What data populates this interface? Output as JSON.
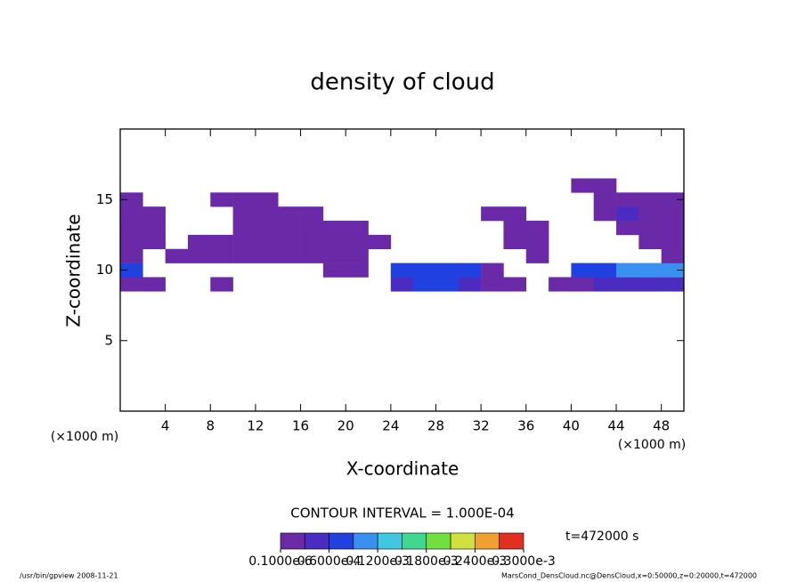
{
  "chart_data": {
    "type": "heatmap",
    "title": "density of cloud",
    "xlabel": "X-coordinate",
    "ylabel": "Z-coordinate",
    "x_unit": "(×1000 m)",
    "xlim": [
      0,
      50
    ],
    "ylim": [
      0,
      20
    ],
    "xticks": [
      4,
      8,
      12,
      16,
      20,
      24,
      28,
      32,
      36,
      40,
      44,
      48
    ],
    "yticks": [
      5,
      10,
      15
    ],
    "x": [
      1,
      3,
      5,
      7,
      9,
      11,
      13,
      15,
      17,
      19,
      21,
      23,
      25,
      27,
      29,
      31,
      33,
      35,
      37,
      39,
      41,
      43,
      45,
      47,
      49
    ],
    "z": [
      9,
      10,
      11,
      12,
      13,
      14,
      15,
      16
    ],
    "values": [
      [
        2e-05,
        2e-05,
        null,
        null,
        2e-05,
        null,
        null,
        null,
        null,
        null,
        null,
        null,
        4e-05,
        6e-05,
        6e-05,
        4e-05,
        2e-05,
        2e-05,
        null,
        2e-05,
        2e-05,
        4e-05,
        4e-05,
        4e-05,
        4e-05
      ],
      [
        6e-05,
        null,
        null,
        null,
        null,
        null,
        null,
        null,
        null,
        2e-05,
        2e-05,
        null,
        6e-05,
        6e-05,
        6e-05,
        6e-05,
        2e-05,
        null,
        null,
        null,
        6e-05,
        6e-05,
        0.0001,
        0.0001,
        0.0001
      ],
      [
        2e-05,
        null,
        2e-05,
        2e-05,
        2e-05,
        2e-05,
        2e-05,
        2e-05,
        2e-05,
        2e-05,
        2e-05,
        null,
        null,
        null,
        null,
        null,
        null,
        null,
        2e-05,
        null,
        null,
        null,
        null,
        null,
        2e-05
      ],
      [
        2e-05,
        2e-05,
        null,
        2e-05,
        2e-05,
        2e-05,
        2e-05,
        2e-05,
        2e-05,
        2e-05,
        2e-05,
        2e-05,
        null,
        null,
        null,
        null,
        null,
        2e-05,
        2e-05,
        null,
        null,
        null,
        null,
        2e-05,
        2e-05
      ],
      [
        2e-05,
        2e-05,
        null,
        null,
        null,
        2e-05,
        2e-05,
        2e-05,
        2e-05,
        2e-05,
        2e-05,
        null,
        null,
        null,
        null,
        null,
        null,
        2e-05,
        2e-05,
        null,
        null,
        null,
        2e-05,
        2e-05,
        2e-05
      ],
      [
        2e-05,
        2e-05,
        null,
        null,
        null,
        2e-05,
        2e-05,
        2e-05,
        2e-05,
        null,
        null,
        null,
        null,
        null,
        null,
        null,
        2e-05,
        2e-05,
        null,
        null,
        null,
        2e-05,
        4e-05,
        2e-05,
        2e-05
      ],
      [
        2e-05,
        null,
        null,
        null,
        2e-05,
        2e-05,
        2e-05,
        null,
        null,
        null,
        null,
        null,
        null,
        null,
        null,
        null,
        null,
        null,
        null,
        null,
        null,
        2e-05,
        2e-05,
        2e-05,
        2e-05
      ],
      [
        null,
        null,
        null,
        null,
        null,
        null,
        null,
        null,
        null,
        null,
        null,
        null,
        null,
        null,
        null,
        null,
        null,
        null,
        null,
        null,
        2e-05,
        2e-05,
        null,
        null,
        null
      ]
    ],
    "colorbar": {
      "bounds": [
        1e-07,
        3e-05,
        6e-05,
        9e-05,
        0.00012,
        0.00015,
        0.00018,
        0.00021,
        0.00024,
        0.00027,
        0.0003
      ],
      "colors": [
        "#6a2aa8",
        "#4a2cc0",
        "#2040e0",
        "#3a90f0",
        "#40c8e0",
        "#40d890",
        "#70e040",
        "#d0e040",
        "#f0a030",
        "#e03020"
      ],
      "ticks": [
        {
          "value": 1e-07,
          "label": "0.1000e-6"
        },
        {
          "value": 6e-05,
          "label": "0.6000e-4"
        },
        {
          "value": 0.00012,
          "label": "0.1200e-3"
        },
        {
          "value": 0.00018,
          "label": "0.1800e-3"
        },
        {
          "value": 0.00024,
          "label": "0.2400e-3"
        },
        {
          "value": 0.0003,
          "label": "0.3000e-3"
        }
      ]
    },
    "contour_interval": "CONTOUR INTERVAL = 1.000E-04",
    "time": "t=472000 s",
    "footer_left": "/usr/bin/gpview   2008-11-21",
    "footer_right": "MarsCond_DensCloud.nc@DensCloud,x=0:50000,z=0:20000,t=472000"
  }
}
